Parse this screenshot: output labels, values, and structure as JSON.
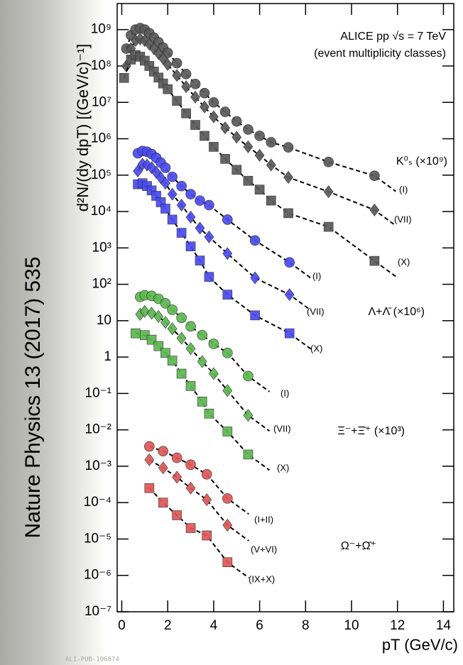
{
  "chart_data": {
    "type": "scatter",
    "title": "ALICE pp √s = 7 TeV",
    "subtitle": "(event multiplicity classes)",
    "y_label": "d²N/(dy dpT) [(GeV/c)⁻¹]",
    "x_label": "pT (GeV/c)",
    "side_text": "Nature Physics 13 (2017) 535",
    "figure_id": "ALI-PUB-106874",
    "log_y": true,
    "xlim": [
      -0.2,
      14.45
    ],
    "ylim": [
      1e-07,
      5200000000.0
    ],
    "xticks": [
      0,
      2,
      4,
      6,
      8,
      10,
      12,
      14
    ],
    "yticks": [
      {
        "value": 1e-07,
        "label": "10⁻⁷"
      },
      {
        "value": 1e-06,
        "label": "10⁻⁶"
      },
      {
        "value": 1e-05,
        "label": "10⁻⁵"
      },
      {
        "value": 0.0001,
        "label": "10⁻⁴"
      },
      {
        "value": 0.001,
        "label": "10⁻³"
      },
      {
        "value": 0.01,
        "label": "10⁻²"
      },
      {
        "value": 0.1,
        "label": "10⁻¹"
      },
      1,
      10,
      {
        "value": 100,
        "label": "10²"
      },
      {
        "value": 1000,
        "label": "10³"
      },
      {
        "value": 10000,
        "label": "10⁴"
      },
      {
        "value": 100000,
        "label": "10⁵"
      },
      {
        "value": 1000000,
        "label": "10⁶"
      },
      {
        "value": 10000000,
        "label": "10⁷"
      },
      {
        "value": 100000000,
        "label": "10⁸"
      },
      {
        "value": 1000000000,
        "label": "10⁹"
      }
    ],
    "groups": [
      {
        "label": "K⁰ₛ (×10⁹)",
        "color": "#5a5a5a",
        "series": [
          {
            "name": "(I)",
            "marker": "circle",
            "x": [
              0.2,
              0.4,
              0.6,
              0.8,
              1.0,
              1.2,
              1.4,
              1.6,
              1.8,
              2.0,
              2.4,
              2.8,
              3.2,
              3.6,
              4.0,
              4.5,
              5.0,
              5.5,
              6.0,
              6.5,
              7.25,
              9.0,
              11.0
            ],
            "values": [
              300000000.0,
              700000000.0,
              1000000000.0,
              1100000000.0,
              1000000000.0,
              800000000.0,
              600000000.0,
              450000000.0,
              320000000.0,
              230000000.0,
              120000000.0,
              60000000.0,
              32000000.0,
              18000000.0,
              10000000.0,
              5500000.0,
              3000000.0,
              1800000.0,
              1200000.0,
              800000.0,
              580000.0,
              230000.0,
              96000.0
            ]
          },
          {
            "name": "(VII)",
            "marker": "diamond",
            "x": [
              0.2,
              0.4,
              0.6,
              0.8,
              1.0,
              1.2,
              1.4,
              1.6,
              1.8,
              2.0,
              2.4,
              2.8,
              3.2,
              3.6,
              4.0,
              4.5,
              5.0,
              5.5,
              6.0,
              6.5,
              7.25,
              9.0,
              11.0
            ],
            "values": [
              100000000.0,
              300000000.0,
              500000000.0,
              550000000.0,
              500000000.0,
              400000000.0,
              300000000.0,
              220000000.0,
              160000000.0,
              110000000.0,
              55000000.0,
              27000000.0,
              14000000.0,
              7500000.0,
              4000000.0,
              2000000.0,
              1100000.0,
              600000.0,
              350000.0,
              190000.0,
              87000.0,
              35000.0,
              11000.0
            ]
          },
          {
            "name": "(X)",
            "marker": "square",
            "x": [
              0.1,
              0.4,
              0.6,
              0.8,
              1.0,
              1.2,
              1.4,
              1.6,
              1.8,
              2.0,
              2.4,
              2.8,
              3.2,
              3.6,
              4.0,
              4.5,
              5.0,
              5.5,
              6.0,
              6.5,
              7.25,
              9.0,
              11.0
            ],
            "values": [
              47000000.0,
              150000000.0,
              200000000.0,
              180000000.0,
              140000000.0,
              100000000.0,
              70000000.0,
              48000000.0,
              33000000.0,
              23000000.0,
              11000000.0,
              5000000.0,
              2400000.0,
              1200000.0,
              600000.0,
              280000.0,
              140000.0,
              70000.0,
              40000.0,
              20000.0,
              9000.0,
              3800.0,
              440
            ]
          }
        ]
      },
      {
        "label": "Λ+Λ̄ (×10⁶)",
        "color": "#4a4af0",
        "series": [
          {
            "name": "(I)",
            "marker": "circle",
            "x": [
              0.7,
              0.9,
              1.1,
              1.3,
              1.5,
              1.7,
              1.9,
              2.2,
              2.6,
              3.0,
              3.4,
              3.8,
              4.6,
              5.8,
              7.3
            ],
            "values": [
              400000.0,
              460000.0,
              440000.0,
              380000.0,
              300000.0,
              220000.0,
              160000.0,
              90000.0,
              50000.0,
              30000.0,
              20000.0,
              15000.0,
              6000.0,
              1600.0,
              400
            ]
          },
          {
            "name": "(VII)",
            "marker": "diamond",
            "x": [
              0.7,
              0.9,
              1.1,
              1.3,
              1.5,
              1.7,
              1.9,
              2.2,
              2.6,
              3.0,
              3.4,
              3.8,
              4.6,
              5.8,
              7.3
            ],
            "values": [
              130000.0,
              200000.0,
              190000.0,
              160000.0,
              120000.0,
              85000.0,
              60000.0,
              30000.0,
              15000.0,
              7000.0,
              3500.0,
              2000.0,
              700,
              150,
              52
            ]
          },
          {
            "name": "(X)",
            "marker": "square",
            "x": [
              0.7,
              0.9,
              1.1,
              1.3,
              1.5,
              1.7,
              1.9,
              2.2,
              2.6,
              3.0,
              3.4,
              3.8,
              4.6,
              5.8,
              7.3
            ],
            "values": [
              56000.0,
              60000.0,
              50000.0,
              38000.0,
              27000.0,
              18000.0,
              12000.0,
              6000.0,
              2600.0,
              1100.0,
              450,
              160,
              52,
              14,
              4.5
            ]
          }
        ]
      },
      {
        "label": "Ξ⁻+Ξ̄⁺ (×10³)",
        "color": "#5cb84f",
        "series": [
          {
            "name": "(I)",
            "marker": "circle",
            "x": [
              0.8,
              1.0,
              1.3,
              1.6,
              1.9,
              2.2,
              2.6,
              3.0,
              3.5,
              4.0,
              4.6,
              5.5
            ],
            "values": [
              45,
              50,
              48,
              40,
              30,
              20,
              12,
              7,
              4,
              2.3,
              1.3,
              0.3
            ]
          },
          {
            "name": "(VII)",
            "marker": "diamond",
            "x": [
              0.8,
              1.0,
              1.3,
              1.6,
              1.9,
              2.2,
              2.6,
              3.0,
              3.5,
              4.0,
              4.6,
              5.5
            ],
            "values": [
              15,
              18,
              16,
              13,
              9,
              6,
              3.3,
              1.7,
              0.75,
              0.35,
              0.12,
              0.025
            ]
          },
          {
            "name": "(X)",
            "marker": "square",
            "x": [
              0.6,
              1.0,
              1.3,
              1.6,
              1.9,
              2.2,
              2.6,
              3.0,
              3.5,
              3.8,
              4.6,
              5.5
            ],
            "values": [
              4.5,
              4,
              3,
              2,
              1.3,
              0.8,
              0.35,
              0.16,
              0.06,
              0.028,
              0.009,
              0.0021
            ]
          }
        ]
      },
      {
        "label": "Ω⁻+Ω̄⁺",
        "color": "#e05656",
        "series": [
          {
            "name": "(I+II)",
            "marker": "circle",
            "x": [
              1.2,
              1.8,
              2.4,
              3.0,
              3.7,
              4.6
            ],
            "values": [
              0.0035,
              0.0026,
              0.0017,
              0.0011,
              0.0006,
              0.00013
            ]
          },
          {
            "name": "(V+VI)",
            "marker": "diamond",
            "x": [
              1.2,
              1.8,
              2.4,
              3.0,
              3.7,
              4.6
            ],
            "values": [
              0.0015,
              0.0009,
              0.0005,
              0.00025,
              0.00012,
              2.4e-05
            ]
          },
          {
            "name": "(IX+X)",
            "marker": "square",
            "x": [
              1.2,
              1.8,
              2.4,
              3.0,
              3.7,
              4.6
            ],
            "values": [
              0.00025,
              0.0001,
              4.5e-05,
              2e-05,
              1.25e-05,
              2.3e-06
            ]
          }
        ]
      }
    ]
  }
}
